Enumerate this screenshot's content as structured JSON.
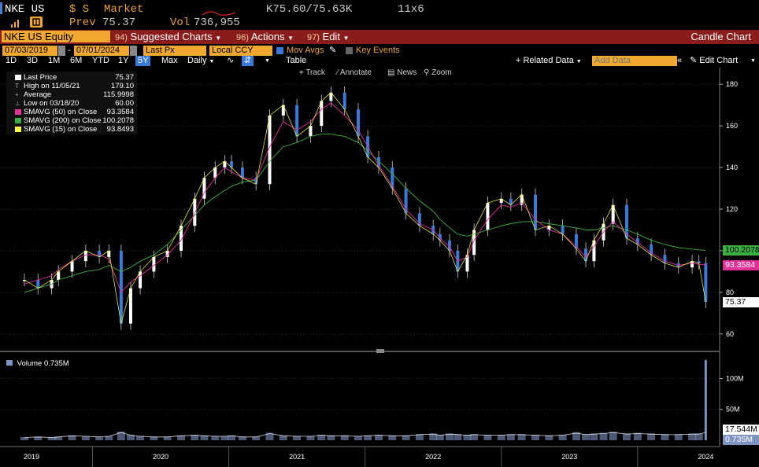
{
  "quote": {
    "ticker": "NKE US",
    "currency_mark": "$ S",
    "market_label": "Market",
    "bid_ask": "K75.60/75.63K",
    "size": "11x6",
    "prev_label": "Prev",
    "prev_value": "75.37",
    "vol_label": "Vol",
    "vol_value": "736,955"
  },
  "menu": {
    "security": "NKE US Equity",
    "suggested": {
      "num": "94)",
      "label": "Suggested Charts"
    },
    "actions": {
      "num": "96)",
      "label": "Actions"
    },
    "edit": {
      "num": "97)",
      "label": "Edit"
    },
    "chart_type": "Candle Chart"
  },
  "controls": {
    "start_date": "07/03/2019",
    "end_date": "07/01/2024",
    "field": "Last Px",
    "currency": "Local CCY",
    "mov_avgs": "Mov Avgs",
    "key_events": "Key Events",
    "periods": [
      "1D",
      "3D",
      "1M",
      "6M",
      "YTD",
      "1Y",
      "5Y",
      "Max"
    ],
    "active_period": "5Y",
    "frequency": "Daily",
    "table": "Table",
    "related": "+ Related Data",
    "add_data_placeholder": "Add Data",
    "edit_chart": "Edit Chart"
  },
  "tools": {
    "track": "Track",
    "annotate": "Annotate",
    "news": "News",
    "zoom": "Zoom"
  },
  "legend": [
    {
      "label": "Last Price",
      "value": "75.37",
      "color": "#ffffff"
    },
    {
      "label": "High on 11/05/21",
      "value": "179.10",
      "color": ""
    },
    {
      "label": "Average",
      "value": "115.9998",
      "color": ""
    },
    {
      "label": "Low on 03/18/20",
      "value": "60.00",
      "color": ""
    },
    {
      "label": "SMAVG (50)  on Close",
      "value": "93.3584",
      "color": "#e0309a"
    },
    {
      "label": "SMAVG (200)  on Close",
      "value": "100.2078",
      "color": "#3cb043"
    },
    {
      "label": "SMAVG (15)  on Close",
      "value": "93.8493",
      "color": "#ffff40"
    }
  ],
  "tags": {
    "sma200": "100.2078",
    "sma50": "93.3584",
    "last": "75.37",
    "vol_ma": "17.544M",
    "vol": "0.735M"
  },
  "volume_legend": "Volume 0.735M",
  "chart_data": {
    "type": "line",
    "price_axis": {
      "ticks": [
        60,
        80,
        100,
        120,
        140,
        160,
        180
      ],
      "ylim": [
        52,
        188
      ]
    },
    "volume_axis": {
      "ticks": [
        "50M",
        "100M"
      ],
      "ylim": [
        0,
        140
      ]
    },
    "x_labels": [
      "2019",
      "2020",
      "2021",
      "2022",
      "2023",
      "2024"
    ],
    "x": [
      2019.5,
      2019.6,
      2019.7,
      2019.75,
      2019.85,
      2019.95,
      2020.05,
      2020.12,
      2020.21,
      2020.28,
      2020.35,
      2020.45,
      2020.55,
      2020.65,
      2020.75,
      2020.82,
      2020.9,
      2020.97,
      2021.02,
      2021.1,
      2021.2,
      2021.3,
      2021.4,
      2021.5,
      2021.6,
      2021.68,
      2021.75,
      2021.85,
      2021.95,
      2022.02,
      2022.1,
      2022.2,
      2022.3,
      2022.4,
      2022.5,
      2022.55,
      2022.62,
      2022.68,
      2022.75,
      2022.8,
      2022.9,
      2023.0,
      2023.07,
      2023.15,
      2023.25,
      2023.35,
      2023.45,
      2023.55,
      2023.62,
      2023.68,
      2023.75,
      2023.82,
      2023.92,
      2024.0,
      2024.1,
      2024.2,
      2024.3,
      2024.4,
      2024.45,
      2024.5
    ],
    "series": [
      {
        "values": [
          86,
          82,
          86,
          90,
          95,
          100,
          97,
          100,
          65,
          82,
          90,
          97,
          100,
          112,
          125,
          135,
          140,
          143,
          140,
          135,
          132,
          165,
          170,
          155,
          160,
          172,
          176,
          168,
          155,
          145,
          140,
          130,
          118,
          112,
          108,
          105,
          100,
          90,
          98,
          110,
          123,
          125,
          122,
          127,
          110,
          112,
          108,
          101,
          95,
          105,
          113,
          122,
          106,
          103,
          98,
          94,
          92,
          95,
          94,
          75.37
        ]
      },
      {
        "name": "SMAVG (50)  on Close",
        "values": [
          84,
          86,
          88,
          91,
          95,
          98,
          98,
          96,
          80,
          85,
          88,
          93,
          98,
          105,
          118,
          128,
          135,
          140,
          138,
          135,
          134,
          150,
          162,
          158,
          162,
          168,
          171,
          165,
          158,
          150,
          141,
          131,
          120,
          113,
          110,
          106,
          102,
          95,
          97,
          105,
          115,
          122,
          121,
          123,
          115,
          110,
          108,
          102,
          97,
          102,
          109,
          114,
          108,
          104,
          99,
          95,
          93,
          94,
          93.5,
          93.3584
        ]
      },
      {
        "name": "SMAVG (200)  on Close",
        "values": [
          80,
          82,
          84,
          86,
          88,
          90,
          91,
          93,
          90,
          92,
          95,
          98,
          103,
          110,
          117,
          122,
          126,
          129,
          131,
          133,
          134,
          143,
          150,
          152,
          155,
          156,
          156,
          155,
          152,
          148,
          143,
          137,
          130,
          124,
          119,
          115,
          111,
          108,
          107,
          108,
          110,
          112,
          113,
          114,
          114,
          113,
          112,
          111,
          110,
          110,
          111,
          112,
          110,
          108,
          105,
          103,
          101.5,
          100.8,
          100.4,
          100.2078
        ]
      },
      {
        "name": "Volume",
        "values": [
          5,
          6,
          5,
          6,
          8,
          7,
          6,
          7,
          14,
          9,
          7,
          6,
          6,
          8,
          9,
          8,
          7,
          7,
          8,
          6,
          6,
          12,
          8,
          7,
          7,
          9,
          8,
          8,
          7,
          8,
          9,
          8,
          8,
          10,
          11,
          9,
          11,
          10,
          9,
          10,
          9,
          9,
          10,
          10,
          9,
          8,
          9,
          13,
          10,
          11,
          12,
          14,
          11,
          12,
          11,
          10,
          10,
          11,
          11,
          130
        ]
      }
    ]
  }
}
